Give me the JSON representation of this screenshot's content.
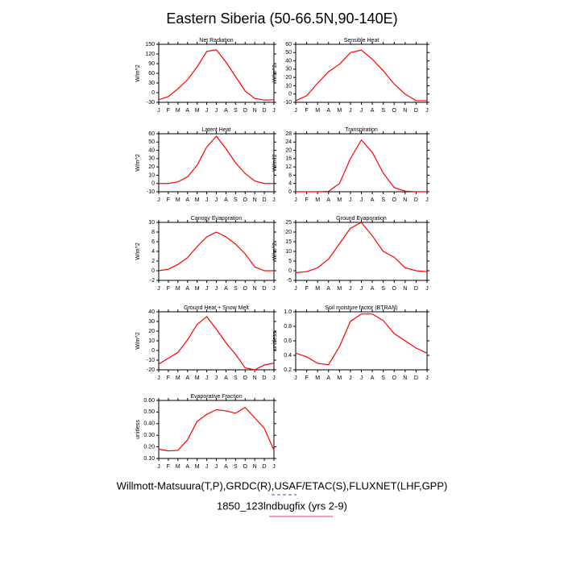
{
  "title": "Eastern Siberia (50-66.5N,90-140E)",
  "footer": [
    "Willmott-Matsuura(T,P),GRDC(R),USAF/ETAC(S),FLUXNET(LHF,GPP)",
    "1850_123lndbugfix (yrs 2-9)"
  ],
  "chart_data": [
    {
      "type": "line",
      "title": "Net Radiation",
      "y_label": "W/m^2",
      "color": "#ff0000",
      "categories": [
        "J",
        "F",
        "M",
        "A",
        "M",
        "J",
        "J",
        "A",
        "S",
        "O",
        "N",
        "D",
        "J"
      ],
      "values": [
        -22,
        -12,
        12,
        40,
        80,
        128,
        133,
        95,
        50,
        5,
        -18,
        -23,
        -22
      ],
      "ylim": [
        -30,
        150
      ],
      "yticks": [
        -30,
        0,
        30,
        60,
        90,
        120,
        150
      ]
    },
    {
      "type": "line",
      "title": "Sensible Heat",
      "y_label": "W/m^2",
      "color": "#ff0000",
      "categories": [
        "J",
        "F",
        "M",
        "A",
        "M",
        "J",
        "J",
        "A",
        "S",
        "O",
        "N",
        "D",
        "J"
      ],
      "values": [
        -8,
        -2,
        13,
        27,
        36,
        50,
        53,
        42,
        28,
        12,
        0,
        -8,
        -8
      ],
      "ylim": [
        -10,
        60
      ],
      "yticks": [
        -10,
        0,
        10,
        20,
        30,
        40,
        50,
        60
      ]
    },
    {
      "type": "line",
      "title": "Latent Heat",
      "y_label": "W/m^2",
      "color": "#ff0000",
      "categories": [
        "J",
        "F",
        "M",
        "A",
        "M",
        "J",
        "J",
        "A",
        "S",
        "O",
        "N",
        "D",
        "J"
      ],
      "values": [
        0,
        0,
        2,
        8,
        22,
        44,
        57,
        42,
        25,
        12,
        3,
        0,
        0
      ],
      "ylim": [
        -10,
        60
      ],
      "yticks": [
        -10,
        0,
        10,
        20,
        30,
        40,
        50,
        60
      ]
    },
    {
      "type": "line",
      "title": "Transpiration",
      "y_label": "W/m^2",
      "color": "#ff0000",
      "categories": [
        "J",
        "F",
        "M",
        "A",
        "M",
        "J",
        "J",
        "A",
        "S",
        "O",
        "N",
        "D",
        "J"
      ],
      "values": [
        0,
        0,
        0,
        0.2,
        4,
        16,
        25,
        19,
        9,
        2,
        0.3,
        0,
        0
      ],
      "ylim": [
        0,
        28
      ],
      "yticks": [
        0,
        4,
        8,
        12,
        16,
        20,
        24,
        28
      ]
    },
    {
      "type": "line",
      "title": "Canopy Evaporation",
      "y_label": "W/m^2",
      "color": "#ff0000",
      "categories": [
        "J",
        "F",
        "M",
        "A",
        "M",
        "J",
        "J",
        "A",
        "S",
        "O",
        "N",
        "D",
        "J"
      ],
      "values": [
        0,
        0.3,
        1.3,
        2.7,
        5,
        7,
        8,
        7,
        5.5,
        3.5,
        0.8,
        0,
        0
      ],
      "ylim": [
        -2,
        10
      ],
      "yticks": [
        -2,
        0,
        2,
        4,
        6,
        8,
        10
      ]
    },
    {
      "type": "line",
      "title": "Ground Evaporation",
      "y_label": "W/m^2",
      "color": "#ff0000",
      "categories": [
        "J",
        "F",
        "M",
        "A",
        "M",
        "J",
        "J",
        "A",
        "S",
        "O",
        "N",
        "D",
        "J"
      ],
      "values": [
        -1,
        -0.5,
        1.5,
        6,
        14,
        22,
        25,
        18,
        10,
        7,
        1.5,
        0,
        -0.5
      ],
      "ylim": [
        -5,
        25
      ],
      "yticks": [
        -5,
        0,
        5,
        10,
        15,
        20,
        25
      ]
    },
    {
      "type": "line",
      "title": "Ground Heat + Snow Melt",
      "y_label": "W/m^2",
      "color": "#ff0000",
      "categories": [
        "J",
        "F",
        "M",
        "A",
        "M",
        "J",
        "J",
        "A",
        "S",
        "O",
        "N",
        "D",
        "J"
      ],
      "values": [
        -14,
        -8,
        -2,
        11,
        27,
        35,
        22,
        8,
        -4,
        -18,
        -20,
        -15,
        -13
      ],
      "ylim": [
        -20,
        40
      ],
      "yticks": [
        -20,
        -10,
        0,
        10,
        20,
        30,
        40
      ]
    },
    {
      "type": "line",
      "title": "Soil moisture factor (BTRAN)",
      "y_label": "unitless",
      "color": "#ff0000",
      "categories": [
        "J",
        "F",
        "M",
        "A",
        "M",
        "J",
        "J",
        "A",
        "S",
        "O",
        "N",
        "D",
        "J"
      ],
      "values": [
        0.43,
        0.38,
        0.29,
        0.27,
        0.52,
        0.87,
        0.97,
        0.97,
        0.88,
        0.7,
        0.6,
        0.5,
        0.43
      ],
      "ylim": [
        0.2,
        1
      ],
      "yticks": [
        0.2,
        0.4,
        0.6,
        0.8,
        {
          "value": 1,
          "label": "1.0"
        }
      ]
    },
    {
      "type": "line",
      "title": "Evaporative Fraction",
      "y_label": "unitless",
      "color": "#ff0000",
      "categories": [
        "J",
        "F",
        "M",
        "A",
        "M",
        "J",
        "J",
        "A",
        "S",
        "O",
        "N",
        "D",
        "J"
      ],
      "values": [
        0.18,
        0.165,
        0.17,
        0.26,
        0.42,
        0.48,
        0.52,
        0.51,
        0.49,
        0.54,
        0.45,
        0.36,
        0.17
      ],
      "ylim": [
        0.1,
        0.6
      ],
      "yticks": [
        {
          "value": 0.1,
          "label": "0.10"
        },
        {
          "value": 0.2,
          "label": "0.20"
        },
        {
          "value": 0.3,
          "label": "0.30"
        },
        {
          "value": 0.4,
          "label": "0.40"
        },
        {
          "value": 0.5,
          "label": "0.50"
        },
        {
          "value": 0.6,
          "label": "0.60"
        }
      ]
    }
  ]
}
